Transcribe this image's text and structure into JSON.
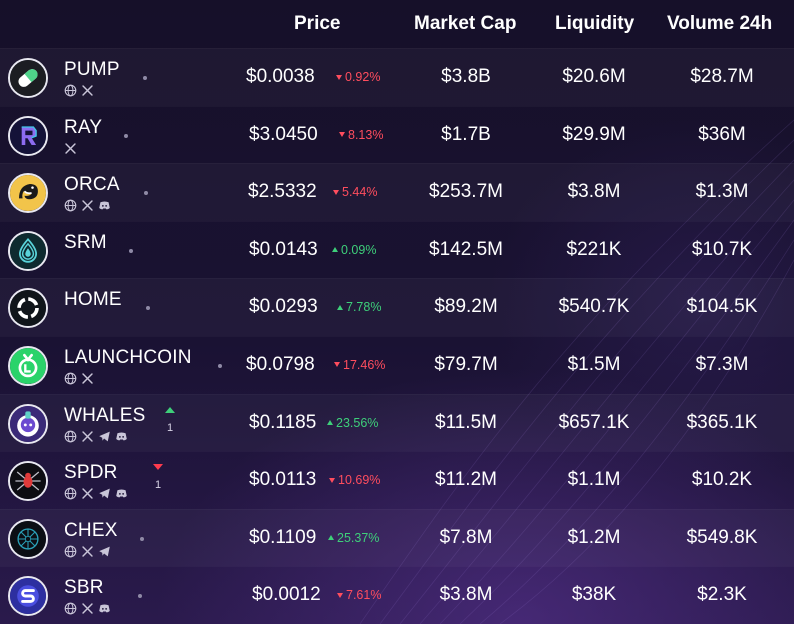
{
  "columns": {
    "price": "Price",
    "market_cap": "Market Cap",
    "liquidity": "Liquidity",
    "volume_24h": "Volume 24h"
  },
  "colors": {
    "up": "#3ecf7a",
    "down": "#ff4d5e",
    "background": "#140f2b"
  },
  "rows": [
    {
      "name": "PUMP",
      "logo_icon": "pill-icon",
      "socials": [
        "globe-icon",
        "x-icon"
      ],
      "price": "$0.0038",
      "change": "0.92%",
      "change_dir": "down",
      "market_cap": "$3.8B",
      "liquidity": "$20.6M",
      "volume": "$28.7M",
      "rank_change": null
    },
    {
      "name": "RAY",
      "logo_icon": "raydium-icon",
      "socials": [
        "x-icon"
      ],
      "price": "$3.0450",
      "change": "8.13%",
      "change_dir": "down",
      "market_cap": "$1.7B",
      "liquidity": "$29.9M",
      "volume": "$36M",
      "rank_change": null
    },
    {
      "name": "ORCA",
      "logo_icon": "orca-icon",
      "socials": [
        "globe-icon",
        "x-icon",
        "discord-icon"
      ],
      "price": "$2.5332",
      "change": "5.44%",
      "change_dir": "down",
      "market_cap": "$253.7M",
      "liquidity": "$3.8M",
      "volume": "$1.3M",
      "rank_change": null
    },
    {
      "name": "SRM",
      "logo_icon": "serum-drop-icon",
      "socials": [],
      "price": "$0.0143",
      "change": "0.09%",
      "change_dir": "up",
      "market_cap": "$142.5M",
      "liquidity": "$221K",
      "volume": "$10.7K",
      "rank_change": null
    },
    {
      "name": "HOME",
      "logo_icon": "home-ring-icon",
      "socials": [],
      "price": "$0.0293",
      "change": "7.78%",
      "change_dir": "up",
      "market_cap": "$89.2M",
      "liquidity": "$540.7K",
      "volume": "$104.5K",
      "rank_change": null
    },
    {
      "name": "LAUNCHCOIN",
      "logo_icon": "launchcoin-icon",
      "socials": [
        "globe-icon",
        "x-icon"
      ],
      "price": "$0.0798",
      "change": "17.46%",
      "change_dir": "down",
      "market_cap": "$79.7M",
      "liquidity": "$1.5M",
      "volume": "$7.3M",
      "rank_change": null
    },
    {
      "name": "WHALES",
      "logo_icon": "whale-icon",
      "socials": [
        "globe-icon",
        "x-icon",
        "telegram-icon",
        "discord-icon"
      ],
      "price": "$0.1185",
      "change": "23.56%",
      "change_dir": "up",
      "market_cap": "$11.5M",
      "liquidity": "$657.1K",
      "volume": "$365.1K",
      "rank_change": {
        "dir": "up",
        "value": "1"
      }
    },
    {
      "name": "SPDR",
      "logo_icon": "spider-icon",
      "socials": [
        "globe-icon",
        "x-icon",
        "telegram-icon",
        "discord-icon"
      ],
      "price": "$0.0113",
      "change": "10.69%",
      "change_dir": "down",
      "market_cap": "$11.2M",
      "liquidity": "$1.1M",
      "volume": "$10.2K",
      "rank_change": {
        "dir": "down",
        "value": "1"
      }
    },
    {
      "name": "CHEX",
      "logo_icon": "chex-icon",
      "socials": [
        "globe-icon",
        "x-icon",
        "telegram-icon"
      ],
      "price": "$0.1109",
      "change": "25.37%",
      "change_dir": "up",
      "market_cap": "$7.8M",
      "liquidity": "$1.2M",
      "volume": "$549.8K",
      "rank_change": null
    },
    {
      "name": "SBR",
      "logo_icon": "saber-icon",
      "socials": [
        "globe-icon",
        "x-icon",
        "discord-icon"
      ],
      "price": "$0.0012",
      "change": "7.61%",
      "change_dir": "down",
      "market_cap": "$3.8M",
      "liquidity": "$38K",
      "volume": "$2.3K",
      "rank_change": null
    }
  ]
}
